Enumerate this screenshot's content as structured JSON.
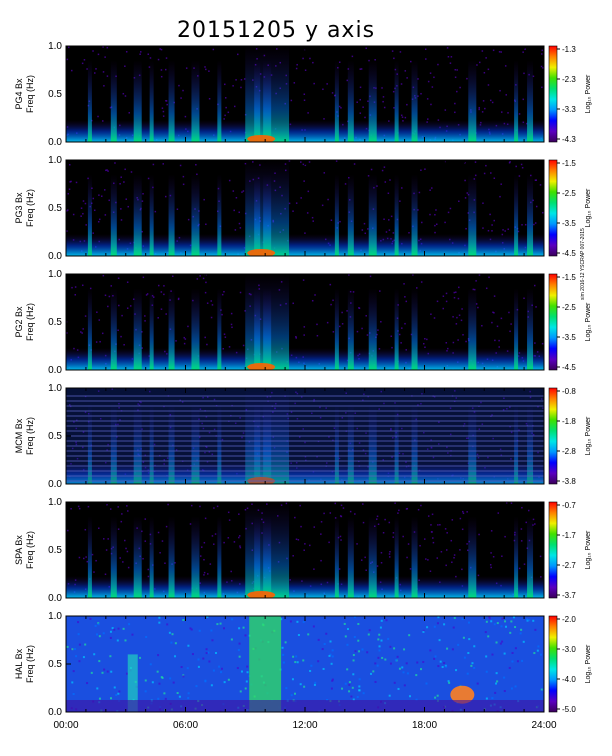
{
  "title": "20151205 y axis",
  "side_note": "sim 2016-12 YSCRAP 007-2015",
  "colors": {
    "background": "#000000",
    "scale": [
      "#3a005a",
      "#5a00c0",
      "#0000ff",
      "#0096ff",
      "#00e6e6",
      "#00e070",
      "#40e000",
      "#f0f000",
      "#ff8000",
      "#ff0000"
    ]
  },
  "chart_data": [
    {
      "type": "heatmap",
      "station": "PG4",
      "ylabel_station": "PG4 Bx",
      "ylabel_freq": "Freq (Hz)",
      "ylim": [
        0.0,
        1.0
      ],
      "yticks": [
        "0.0",
        "0.5",
        "1.0"
      ],
      "xlim": [
        0,
        24
      ],
      "colorbar_label": "Log₁₀ Power",
      "colorbar_ticks": [
        "-1.3",
        "-2.3",
        "-3.3",
        "-4.3"
      ],
      "texture": "dark"
    },
    {
      "type": "heatmap",
      "station": "PG3",
      "ylabel_station": "PG3 Bx",
      "ylabel_freq": "Freq (Hz)",
      "ylim": [
        0.0,
        1.0
      ],
      "yticks": [
        "0.0",
        "0.5",
        "1.0"
      ],
      "xlim": [
        0,
        24
      ],
      "colorbar_label": "Log₁₀ Power",
      "colorbar_ticks": [
        "-1.5",
        "-2.5",
        "-3.5",
        "-4.5"
      ],
      "texture": "dark"
    },
    {
      "type": "heatmap",
      "station": "PG2",
      "ylabel_station": "PG2 Bx",
      "ylabel_freq": "Freq (Hz)",
      "ylim": [
        0.0,
        1.0
      ],
      "yticks": [
        "0.0",
        "0.5",
        "1.0"
      ],
      "xlim": [
        0,
        24
      ],
      "colorbar_label": "Log₁₀ Power",
      "colorbar_ticks": [
        "-1.5",
        "-2.5",
        "-3.5",
        "-4.5"
      ],
      "texture": "dark"
    },
    {
      "type": "heatmap",
      "station": "MCM",
      "ylabel_station": "MCM Bx",
      "ylabel_freq": "Freq (Hz)",
      "ylim": [
        0.0,
        1.0
      ],
      "yticks": [
        "0.0",
        "0.5",
        "1.0"
      ],
      "xlim": [
        0,
        24
      ],
      "colorbar_label": "Log₁₀ Power",
      "colorbar_ticks": [
        "-0.8",
        "-1.8",
        "-2.8",
        "-3.8"
      ],
      "texture": "striped"
    },
    {
      "type": "heatmap",
      "station": "SPA",
      "ylabel_station": "SPA Bx",
      "ylabel_freq": "Freq (Hz)",
      "ylim": [
        0.0,
        1.0
      ],
      "yticks": [
        "0.0",
        "0.5",
        "1.0"
      ],
      "xlim": [
        0,
        24
      ],
      "colorbar_label": "Log₁₀ Power",
      "colorbar_ticks": [
        "-0.7",
        "-1.7",
        "-2.7",
        "-3.7"
      ],
      "texture": "dark"
    },
    {
      "type": "heatmap",
      "station": "HAL",
      "ylabel_station": "HAL Bx",
      "ylabel_freq": "Freq (Hz)",
      "ylim": [
        0.0,
        1.0
      ],
      "yticks": [
        "0.0",
        "0.5",
        "1.0"
      ],
      "xlim": [
        0,
        24
      ],
      "colorbar_label": "Log₁₀ Power",
      "colorbar_ticks": [
        "-2.0",
        "-3.0",
        "-4.0",
        "-5.0"
      ],
      "texture": "bright",
      "xticks": [
        "00:00",
        "06:00",
        "12:00",
        "18:00",
        "24:00"
      ]
    }
  ]
}
